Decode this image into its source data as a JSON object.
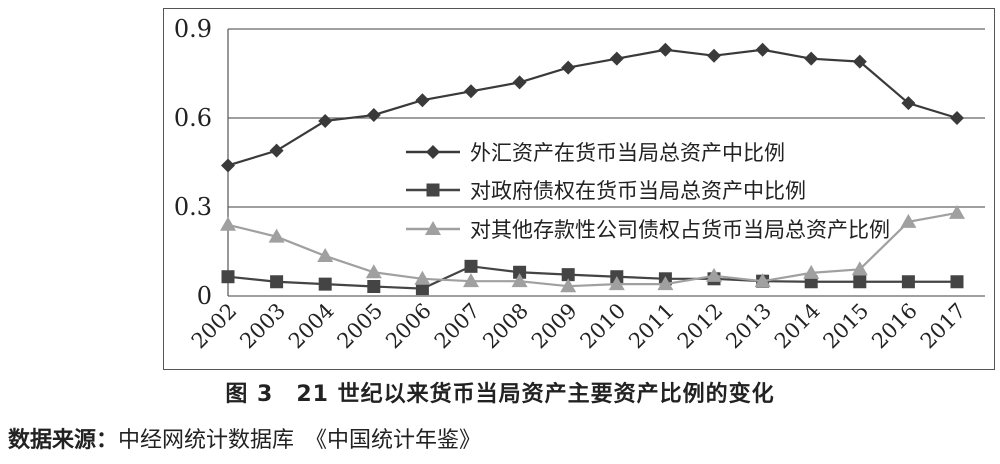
{
  "caption": "图 3　21 世纪以来货币当局资产主要资产比例的变化",
  "source_label": "数据来源：",
  "source_text": "中经网统计数据库　《中国统计年鉴》",
  "chart_data": {
    "type": "line",
    "title": "",
    "xlabel": "",
    "ylabel": "",
    "categories": [
      "2002",
      "2003",
      "2004",
      "2005",
      "2006",
      "2007",
      "2008",
      "2009",
      "2010",
      "2011",
      "2012",
      "2013",
      "2014",
      "2015",
      "2016",
      "2017"
    ],
    "ylim": [
      0,
      0.9
    ],
    "yticks": [
      "0.9",
      "0.6",
      "0.3",
      "0"
    ],
    "ytick_values": [
      0.9,
      0.6,
      0.3,
      0
    ],
    "grid": "horizontal",
    "legend_position": "center-right",
    "series": [
      {
        "name": "外汇资产在货币当局总资产中比例",
        "marker": "diamond",
        "color": "#3a3a3a",
        "values": [
          0.44,
          0.49,
          0.59,
          0.61,
          0.66,
          0.69,
          0.72,
          0.77,
          0.8,
          0.83,
          0.81,
          0.83,
          0.8,
          0.79,
          0.65,
          0.6
        ]
      },
      {
        "name": "对政府债权在货币当局总资产中比例",
        "marker": "square",
        "color": "#444444",
        "values": [
          0.065,
          0.048,
          0.04,
          0.032,
          0.025,
          0.1,
          0.08,
          0.072,
          0.065,
          0.058,
          0.058,
          0.05,
          0.048,
          0.048,
          0.048,
          0.048
        ]
      },
      {
        "name": "对其他存款性公司债权占货币当局总资产比例",
        "marker": "triangle",
        "color": "#a0a0a0",
        "values": [
          0.24,
          0.2,
          0.135,
          0.08,
          0.058,
          0.05,
          0.05,
          0.033,
          0.04,
          0.04,
          0.068,
          0.05,
          0.078,
          0.09,
          0.25,
          0.28
        ]
      }
    ]
  }
}
